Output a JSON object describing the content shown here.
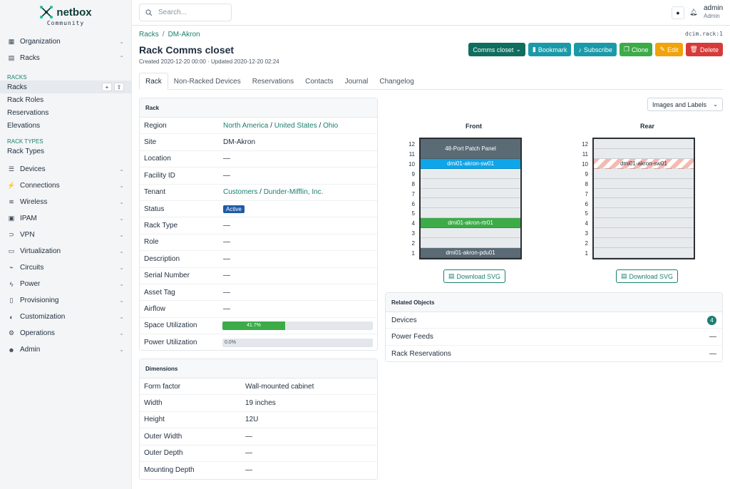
{
  "brand": {
    "name": "netbox",
    "sub": "Community"
  },
  "sidebar": {
    "top_items": [
      {
        "label": "Organization",
        "icon": "building-icon"
      },
      {
        "label": "Racks",
        "icon": "rack-icon"
      }
    ],
    "section_racks": "RACKS",
    "racks_sub": [
      "Racks",
      "Rack Roles",
      "Reservations",
      "Elevations"
    ],
    "section_rack_types": "RACK TYPES",
    "rack_types_sub": [
      "Rack Types"
    ],
    "bottom_items": [
      {
        "label": "Devices"
      },
      {
        "label": "Connections"
      },
      {
        "label": "Wireless"
      },
      {
        "label": "IPAM"
      },
      {
        "label": "VPN"
      },
      {
        "label": "Virtualization"
      },
      {
        "label": "Circuits"
      },
      {
        "label": "Power"
      },
      {
        "label": "Provisioning"
      },
      {
        "label": "Customization"
      },
      {
        "label": "Operations"
      },
      {
        "label": "Admin"
      }
    ]
  },
  "topbar": {
    "search_placeholder": "Search...",
    "username": "admin",
    "role": "Admin"
  },
  "breadcrumb": {
    "root": "Racks",
    "site": "DM-Akron"
  },
  "identifier": "dcim.rack:1",
  "title": "Rack Comms closet",
  "meta": "Created 2020-12-20 00:00 · Updated 2020-12-20 02:24",
  "actions": {
    "dropdown": "Comms closet",
    "bookmark": "Bookmark",
    "subscribe": "Subscribe",
    "clone": "Clone",
    "edit": "Edit",
    "delete": "Delete"
  },
  "tabs": [
    "Rack",
    "Non-Racked Devices",
    "Reservations",
    "Contacts",
    "Journal",
    "Changelog"
  ],
  "rack_card": {
    "header": "Rack",
    "region": [
      "North America",
      "United States",
      "Ohio"
    ],
    "rows": [
      {
        "key": "Site",
        "value": "DM-Akron",
        "link": true
      },
      {
        "key": "Location",
        "value": "—"
      },
      {
        "key": "Facility ID",
        "value": "—"
      }
    ],
    "tenant": [
      "Customers",
      "Dunder-Mifflin, Inc."
    ],
    "status": "Active",
    "rows2": [
      {
        "key": "Rack Type",
        "value": "—"
      },
      {
        "key": "Role",
        "value": "—"
      },
      {
        "key": "Description",
        "value": "—"
      },
      {
        "key": "Serial Number",
        "value": "—"
      },
      {
        "key": "Asset Tag",
        "value": "—"
      },
      {
        "key": "Airflow",
        "value": "—"
      }
    ],
    "labels": {
      "region": "Region",
      "tenant": "Tenant",
      "status": "Status",
      "space": "Space Utilization",
      "power": "Power Utilization"
    },
    "space_utilization": {
      "percent": 41.7,
      "label": "41.7%"
    },
    "power_utilization": {
      "percent": 0,
      "label": "0.0%"
    }
  },
  "dimensions_card": {
    "header": "Dimensions",
    "rows": [
      {
        "key": "Form factor",
        "value": "Wall-mounted cabinet"
      },
      {
        "key": "Width",
        "value": "19 inches"
      },
      {
        "key": "Height",
        "value": "12U"
      },
      {
        "key": "Outer Width",
        "value": "—"
      },
      {
        "key": "Outer Depth",
        "value": "—"
      },
      {
        "key": "Mounting Depth",
        "value": "—"
      }
    ]
  },
  "image_select": "Images and Labels",
  "elevation": {
    "front_title": "Front",
    "rear_title": "Rear",
    "units": [
      12,
      11,
      10,
      9,
      8,
      7,
      6,
      5,
      4,
      3,
      2,
      1
    ],
    "front_devices": [
      {
        "name": "48-Port Patch Panel",
        "top": 12,
        "height": 2,
        "color": "#5a6b76"
      },
      {
        "name": "dmi01-akron-sw01",
        "top": 10,
        "height": 1,
        "color": "#0ea5e9"
      },
      {
        "name": "dmi01-akron-rtr01",
        "top": 4,
        "height": 1,
        "color": "#3cab48"
      },
      {
        "name": "dmi01-akron-pdu01",
        "top": 1,
        "height": 1,
        "color": "#5a6b76"
      }
    ],
    "rear_devices": [
      {
        "name": "dmi01-akron-sw01",
        "top": 10,
        "height": 1,
        "color": "hatch"
      }
    ],
    "download_label": "Download SVG"
  },
  "related": {
    "header": "Related Objects",
    "items": [
      {
        "label": "Devices",
        "count": "4",
        "pill": true
      },
      {
        "label": "Power Feeds",
        "count": "—"
      },
      {
        "label": "Rack Reservations",
        "count": "—"
      }
    ]
  },
  "colors": {
    "accent": "#1a7f6e",
    "bookmark": "#1a9aa8",
    "clone": "#3cab48",
    "edit": "#f0a30a",
    "delete": "#d63a3a",
    "dropdown": "#0f6e5e"
  }
}
